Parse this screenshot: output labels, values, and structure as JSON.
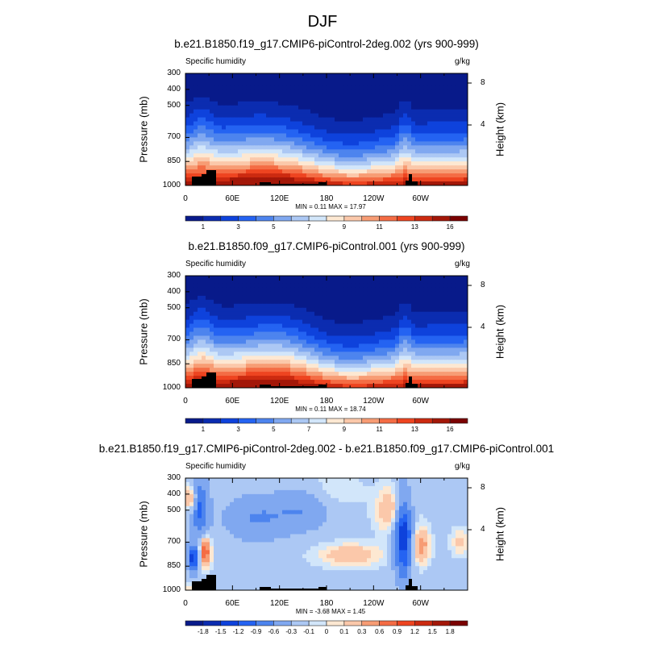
{
  "title": "DJF",
  "colors": [
    "#081a8a",
    "#0b2cb0",
    "#0e42dc",
    "#2463f2",
    "#4d84ee",
    "#80a8f0",
    "#acc8f4",
    "#d2e6fa",
    "#fde8d2",
    "#fbc8aa",
    "#f79c74",
    "#f46c44",
    "#ee4420",
    "#cc2a10",
    "#a31708",
    "#7a0202"
  ],
  "terrain_color": "#000000",
  "chart_data": [
    {
      "type": "heatmap",
      "title": "b.e21.B1850.f19_g17.CMIP6-piControl-2deg.002 (yrs 900-999)",
      "left_label": "Specific humidity",
      "right_label": "g/kg",
      "ylabel": "Pressure (mb)",
      "ylabel_right": "Height (km)",
      "yticks": [
        "300",
        "400",
        "500",
        "700",
        "850",
        "1000"
      ],
      "yticks_right": [
        "8",
        "4"
      ],
      "xticks": [
        "0",
        "60E",
        "120E",
        "180",
        "120W",
        "60W"
      ],
      "ylim": [
        1000,
        300
      ],
      "xlim": [
        0,
        360
      ],
      "min_max": "MIN =  0.11  MAX = 17.97",
      "levels": [
        1,
        2,
        3,
        4,
        5,
        6,
        7,
        8,
        9,
        10,
        11,
        12,
        13,
        14,
        16
      ],
      "level_labels": [
        "1",
        "3",
        "5",
        "7",
        "9",
        "11",
        "13",
        "16"
      ],
      "min": 0.11,
      "max": 17.97
    },
    {
      "type": "heatmap",
      "title": "b.e21.B1850.f09_g17.CMIP6-piControl.001 (yrs 900-999)",
      "left_label": "Specific humidity",
      "right_label": "g/kg",
      "ylabel": "Pressure (mb)",
      "ylabel_right": "Height (km)",
      "yticks": [
        "300",
        "400",
        "500",
        "700",
        "850",
        "1000"
      ],
      "yticks_right": [
        "8",
        "4"
      ],
      "xticks": [
        "0",
        "60E",
        "120E",
        "180",
        "120W",
        "60W"
      ],
      "ylim": [
        1000,
        300
      ],
      "xlim": [
        0,
        360
      ],
      "min_max": "MIN =  0.11  MAX = 18.74",
      "levels": [
        1,
        2,
        3,
        4,
        5,
        6,
        7,
        8,
        9,
        10,
        11,
        12,
        13,
        14,
        16
      ],
      "level_labels": [
        "1",
        "3",
        "5",
        "7",
        "9",
        "11",
        "13",
        "16"
      ],
      "min": 0.11,
      "max": 18.74
    },
    {
      "type": "heatmap",
      "title": "b.e21.B1850.f19_g17.CMIP6-piControl-2deg.002 - b.e21.B1850.f09_g17.CMIP6-piControl.001",
      "left_label": "Specific humidity",
      "right_label": "g/kg",
      "ylabel": "Pressure (mb)",
      "ylabel_right": "Height (km)",
      "yticks": [
        "300",
        "400",
        "500",
        "700",
        "850",
        "1000"
      ],
      "yticks_right": [
        "8",
        "4"
      ],
      "xticks": [
        "0",
        "60E",
        "120E",
        "180",
        "120W",
        "60W"
      ],
      "ylim": [
        1000,
        300
      ],
      "xlim": [
        0,
        360
      ],
      "min_max": "MIN = -3.68  MAX =  1.45",
      "levels": [
        -1.8,
        -1.5,
        -1.2,
        -0.9,
        -0.6,
        -0.3,
        -0.1,
        0,
        0.1,
        0.3,
        0.6,
        0.9,
        1.2,
        1.5,
        1.8
      ],
      "level_labels": [
        "-1.8",
        "-1.5",
        "-1.2",
        "-0.9",
        "-0.6",
        "-0.3",
        "-0.1",
        "0",
        "0.1",
        "0.3",
        "0.6",
        "0.9",
        "1.2",
        "1.5",
        "1.8"
      ],
      "min": -3.68,
      "max": 1.45
    }
  ]
}
